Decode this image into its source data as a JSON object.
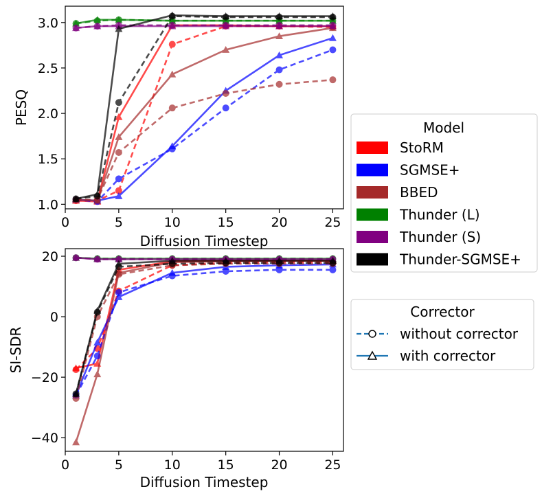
{
  "chart_data": [
    {
      "type": "line",
      "id": "pesq",
      "ylabel": "PESQ",
      "xlabel": "Diffusion Timestep",
      "xlim": [
        0,
        26
      ],
      "ylim": [
        0.95,
        3.18
      ],
      "xticks": [
        0,
        5,
        10,
        15,
        20,
        25
      ],
      "yticks": [
        1.0,
        1.5,
        2.0,
        2.5,
        3.0
      ],
      "ytick_labels": [
        "1.0",
        "1.5",
        "2.0",
        "2.5",
        "3.0"
      ],
      "x": [
        1,
        3,
        5,
        10,
        15,
        20,
        25
      ],
      "series": [
        {
          "name": "StoRM",
          "corrector": "without corrector",
          "values": [
            1.04,
            1.04,
            1.15,
            2.76,
            2.96,
            2.96,
            2.95
          ]
        },
        {
          "name": "StoRM",
          "corrector": "with corrector",
          "values": [
            1.04,
            1.03,
            1.96,
            2.97,
            2.97,
            2.96,
            2.96
          ]
        },
        {
          "name": "SGMSE+",
          "corrector": "without corrector",
          "values": [
            1.05,
            1.03,
            1.28,
            1.61,
            2.06,
            2.48,
            2.7
          ]
        },
        {
          "name": "SGMSE+",
          "corrector": "with corrector",
          "values": [
            1.05,
            1.04,
            1.09,
            1.64,
            2.25,
            2.64,
            2.83
          ]
        },
        {
          "name": "BBED",
          "corrector": "without corrector",
          "values": [
            1.05,
            1.05,
            1.57,
            2.06,
            2.22,
            2.32,
            2.37
          ]
        },
        {
          "name": "BBED",
          "corrector": "with corrector",
          "values": [
            1.05,
            1.04,
            1.74,
            2.43,
            2.7,
            2.85,
            2.94
          ]
        },
        {
          "name": "Thunder (L)",
          "corrector": "without corrector",
          "values": [
            2.99,
            3.02,
            3.03,
            3.02,
            3.02,
            3.02,
            3.02
          ]
        },
        {
          "name": "Thunder (L)",
          "corrector": "with corrector",
          "values": [
            2.99,
            3.03,
            3.03,
            3.02,
            3.02,
            3.02,
            3.02
          ]
        },
        {
          "name": "Thunder (S)",
          "corrector": "without corrector",
          "values": [
            2.94,
            2.96,
            2.97,
            2.97,
            2.97,
            2.97,
            2.97
          ]
        },
        {
          "name": "Thunder (S)",
          "corrector": "with corrector",
          "values": [
            2.94,
            2.96,
            2.96,
            2.96,
            2.96,
            2.96,
            2.96
          ]
        },
        {
          "name": "Thunder-SGMSE+",
          "corrector": "without corrector",
          "values": [
            1.06,
            1.09,
            2.12,
            3.07,
            3.06,
            3.06,
            3.06
          ]
        },
        {
          "name": "Thunder-SGMSE+",
          "corrector": "with corrector",
          "values": [
            1.06,
            1.11,
            2.93,
            3.08,
            3.07,
            3.07,
            3.07
          ]
        }
      ]
    },
    {
      "type": "line",
      "id": "sisdr",
      "ylabel": "SI-SDR",
      "xlabel": "Diffusion Timestep",
      "xlim": [
        0,
        26
      ],
      "ylim": [
        -44.5,
        22.5
      ],
      "xticks": [
        0,
        5,
        10,
        15,
        20,
        25
      ],
      "yticks": [
        -40,
        -20,
        0,
        20
      ],
      "ytick_labels": [
        "−40",
        "−20",
        "0",
        "20"
      ],
      "x": [
        1,
        3,
        5,
        10,
        15,
        20,
        25
      ],
      "series": [
        {
          "name": "StoRM",
          "corrector": "without corrector",
          "values": [
            -17.5,
            -10.5,
            8.5,
            17.0,
            17.8,
            18.0,
            18.0
          ]
        },
        {
          "name": "StoRM",
          "corrector": "with corrector",
          "values": [
            -17.0,
            -15.5,
            15.5,
            18.3,
            18.5,
            18.5,
            18.5
          ]
        },
        {
          "name": "SGMSE+",
          "corrector": "without corrector",
          "values": [
            -26.0,
            -13.0,
            8.0,
            13.5,
            15.0,
            15.5,
            15.5
          ]
        },
        {
          "name": "SGMSE+",
          "corrector": "with corrector",
          "values": [
            -26.0,
            -8.5,
            6.5,
            14.5,
            16.5,
            17.0,
            17.3
          ]
        },
        {
          "name": "BBED",
          "corrector": "without corrector",
          "values": [
            -27.0,
            0.0,
            14.0,
            17.0,
            17.5,
            17.5,
            17.5
          ]
        },
        {
          "name": "BBED",
          "corrector": "with corrector",
          "values": [
            -41.5,
            -19.0,
            14.5,
            18.0,
            18.3,
            18.5,
            18.5
          ]
        },
        {
          "name": "Thunder (L)",
          "corrector": "without corrector",
          "values": [
            19.5,
            19.2,
            19.2,
            19.2,
            19.2,
            19.2,
            19.2
          ]
        },
        {
          "name": "Thunder (L)",
          "corrector": "with corrector",
          "values": [
            19.5,
            19.2,
            19.2,
            19.2,
            19.2,
            19.2,
            19.2
          ]
        },
        {
          "name": "Thunder (S)",
          "corrector": "without corrector",
          "values": [
            19.5,
            19.0,
            19.0,
            19.0,
            19.0,
            19.0,
            19.0
          ]
        },
        {
          "name": "Thunder (S)",
          "corrector": "with corrector",
          "values": [
            19.5,
            19.0,
            19.0,
            19.0,
            19.0,
            19.0,
            19.0
          ]
        },
        {
          "name": "Thunder-SGMSE+",
          "corrector": "without corrector",
          "values": [
            -25.5,
            1.5,
            16.5,
            17.5,
            17.8,
            17.8,
            17.8
          ]
        },
        {
          "name": "Thunder-SGMSE+",
          "corrector": "with corrector",
          "values": [
            -25.5,
            2.0,
            17.5,
            18.5,
            18.5,
            18.5,
            18.5
          ]
        }
      ]
    }
  ],
  "legend_model": {
    "title": "Model",
    "entries": [
      {
        "label": "StoRM",
        "color": "#ff0000"
      },
      {
        "label": "SGMSE+",
        "color": "#0000ff"
      },
      {
        "label": "BBED",
        "color": "#a52a2a"
      },
      {
        "label": "Thunder (L)",
        "color": "#008000"
      },
      {
        "label": "Thunder (S)",
        "color": "#800080"
      },
      {
        "label": "Thunder-SGMSE+",
        "color": "#000000"
      }
    ]
  },
  "legend_corrector": {
    "title": "Corrector",
    "entries": [
      {
        "label": "without corrector",
        "style": "dashed",
        "marker": "circle",
        "color": "#1f77b4"
      },
      {
        "label": "with corrector",
        "style": "solid",
        "marker": "triangle",
        "color": "#1f77b4"
      }
    ]
  }
}
